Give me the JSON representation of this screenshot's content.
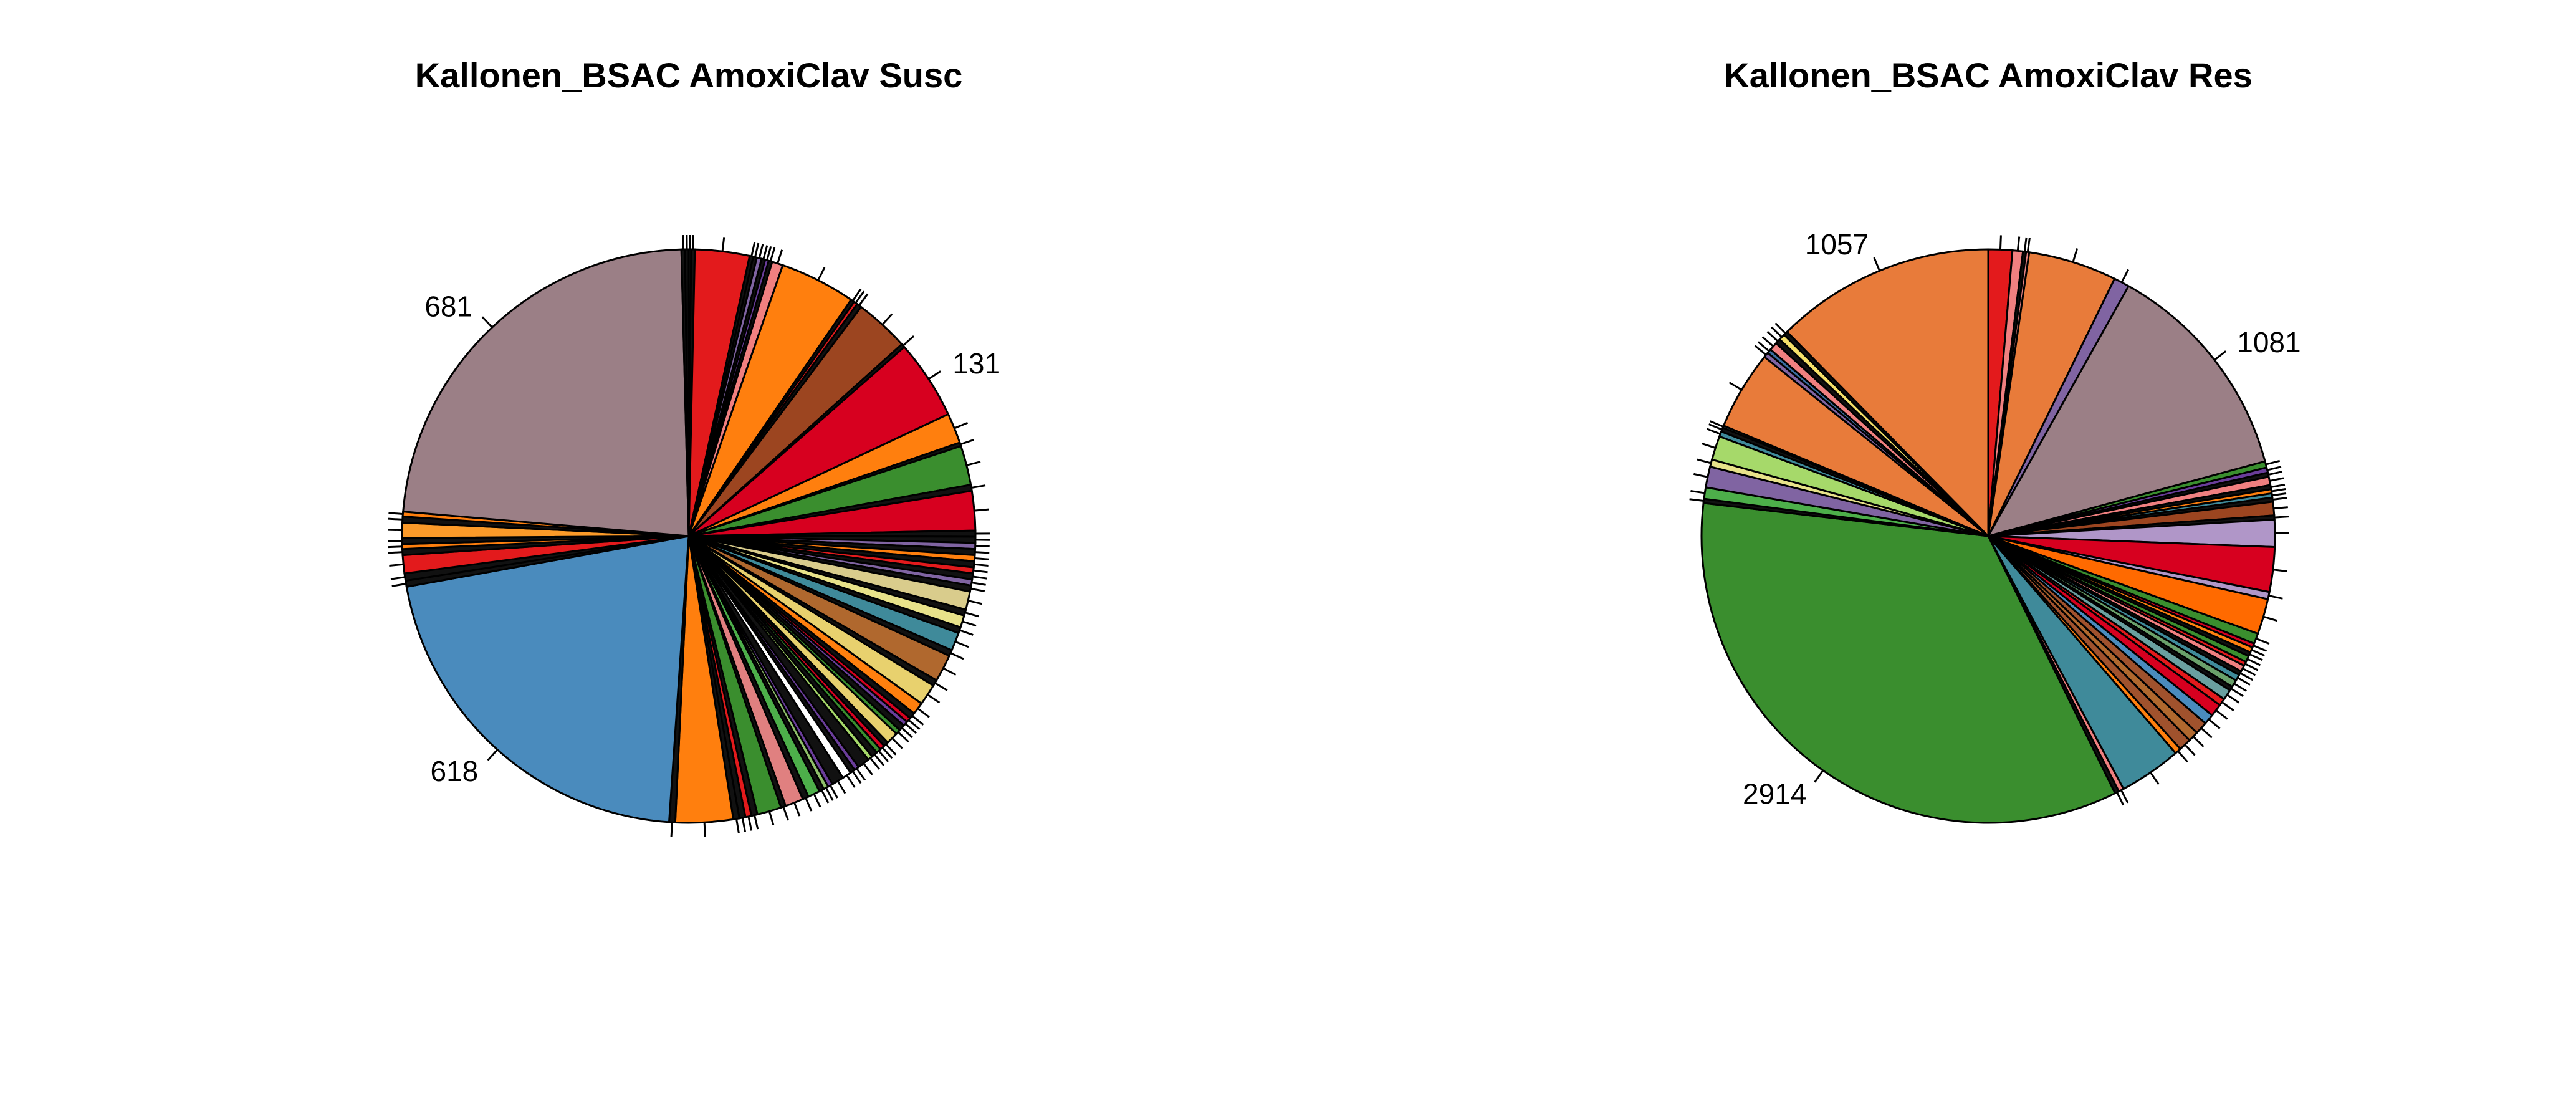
{
  "chart_data": [
    {
      "type": "pie",
      "title": "Kallonen_BSAC AmoxiClav Susc",
      "slices": [
        {
          "value": 4,
          "color": "#111111"
        },
        {
          "value": 6,
          "color": "#111111"
        },
        {
          "value": 90,
          "color": "#e31a1c"
        },
        {
          "value": 6,
          "color": "#111111"
        },
        {
          "value": 6,
          "color": "#111111"
        },
        {
          "value": 8,
          "color": "#8064a2"
        },
        {
          "value": 6,
          "color": "#111111"
        },
        {
          "value": 6,
          "color": "#6a3d9a"
        },
        {
          "value": 6,
          "color": "#111111"
        },
        {
          "value": 18,
          "color": "#f08080"
        },
        {
          "value": 125,
          "color": "#ff7f0e"
        },
        {
          "value": 6,
          "color": "#111111"
        },
        {
          "value": 6,
          "color": "#e31a1c"
        },
        {
          "value": 8,
          "color": "#111111"
        },
        {
          "value": 90,
          "color": "#9c4520"
        },
        {
          "value": 6,
          "color": "#111111"
        },
        {
          "value": 131,
          "color": "#d7001f",
          "label": "131"
        },
        {
          "value": 50,
          "color": "#ff7f0e"
        },
        {
          "value": 6,
          "color": "#111111"
        },
        {
          "value": 65,
          "color": "#3a8e2e"
        },
        {
          "value": 10,
          "color": "#111111"
        },
        {
          "value": 65,
          "color": "#d7001f"
        },
        {
          "value": 10,
          "color": "#111111"
        },
        {
          "value": 10,
          "color": "#111111"
        },
        {
          "value": 10,
          "color": "#8064a2"
        },
        {
          "value": 10,
          "color": "#111111"
        },
        {
          "value": 10,
          "color": "#ff7f0e"
        },
        {
          "value": 10,
          "color": "#111111"
        },
        {
          "value": 10,
          "color": "#e31a1c"
        },
        {
          "value": 10,
          "color": "#111111"
        },
        {
          "value": 10,
          "color": "#8064a2"
        },
        {
          "value": 10,
          "color": "#111111"
        },
        {
          "value": 30,
          "color": "#d9cc8c"
        },
        {
          "value": 10,
          "color": "#111111"
        },
        {
          "value": 20,
          "color": "#e8e28a"
        },
        {
          "value": 10,
          "color": "#111111"
        },
        {
          "value": 30,
          "color": "#3f8a9a"
        },
        {
          "value": 10,
          "color": "#111111"
        },
        {
          "value": 45,
          "color": "#b0682e"
        },
        {
          "value": 10,
          "color": "#111111"
        },
        {
          "value": 35,
          "color": "#e8d16e"
        },
        {
          "value": 20,
          "color": "#ff7f0e"
        },
        {
          "value": 10,
          "color": "#111111"
        },
        {
          "value": 8,
          "color": "#d7001f"
        },
        {
          "value": 8,
          "color": "#6a3d9a"
        },
        {
          "value": 10,
          "color": "#111111"
        },
        {
          "value": 8,
          "color": "#3a8e2e"
        },
        {
          "value": 20,
          "color": "#e8d16e"
        },
        {
          "value": 8,
          "color": "#111111"
        },
        {
          "value": 8,
          "color": "#d7001f"
        },
        {
          "value": 8,
          "color": "#3a8e2e"
        },
        {
          "value": 10,
          "color": "#111111"
        },
        {
          "value": 8,
          "color": "#a6d96a"
        },
        {
          "value": 20,
          "color": "#111111"
        },
        {
          "value": 8,
          "color": "#6a3d9a"
        },
        {
          "value": 8,
          "color": "#111111"
        },
        {
          "value": 15,
          "color": "#ffffff"
        },
        {
          "value": 20,
          "color": "#111111"
        },
        {
          "value": 8,
          "color": "#6a3d9a"
        },
        {
          "value": 8,
          "color": "#8fbf6a"
        },
        {
          "value": 8,
          "color": "#111111"
        },
        {
          "value": 20,
          "color": "#4daf4a"
        },
        {
          "value": 10,
          "color": "#111111"
        },
        {
          "value": 30,
          "color": "#e08080"
        },
        {
          "value": 8,
          "color": "#111111"
        },
        {
          "value": 40,
          "color": "#3a8e2e"
        },
        {
          "value": 10,
          "color": "#111111"
        },
        {
          "value": 10,
          "color": "#e31a1c"
        },
        {
          "value": 10,
          "color": "#111111"
        },
        {
          "value": 10,
          "color": "#111111"
        },
        {
          "value": 95,
          "color": "#ff7f0e"
        },
        {
          "value": 10,
          "color": "#111111"
        },
        {
          "value": 618,
          "color": "#4a8bbd",
          "label": "618"
        },
        {
          "value": 10,
          "color": "#111111"
        },
        {
          "value": 12,
          "color": "#111111"
        },
        {
          "value": 30,
          "color": "#e31a1c"
        },
        {
          "value": 10,
          "color": "#111111"
        },
        {
          "value": 8,
          "color": "#ff7f0e"
        },
        {
          "value": 10,
          "color": "#111111"
        },
        {
          "value": 25,
          "color": "#fb9a29"
        },
        {
          "value": 10,
          "color": "#111111"
        },
        {
          "value": 8,
          "color": "#ff7f0e"
        },
        {
          "value": 681,
          "color": "#9b7f86",
          "label": "681"
        },
        {
          "value": 6,
          "color": "#111111"
        },
        {
          "value": 6,
          "color": "#111111"
        }
      ]
    },
    {
      "type": "pie",
      "title": "Kallonen_BSAC AmoxiClav Res",
      "slices": [
        {
          "value": 115,
          "color": "#e31a1c"
        },
        {
          "value": 50,
          "color": "#f08080"
        },
        {
          "value": 15,
          "color": "#111111"
        },
        {
          "value": 15,
          "color": "#e38080"
        },
        {
          "value": 425,
          "color": "#e87b3a"
        },
        {
          "value": 75,
          "color": "#8064a2"
        },
        {
          "value": 1081,
          "color": "#9b7f86",
          "label": "1081"
        },
        {
          "value": 30,
          "color": "#3a8e2e"
        },
        {
          "value": 25,
          "color": "#6a3d9a"
        },
        {
          "value": 20,
          "color": "#111111"
        },
        {
          "value": 40,
          "color": "#f08080"
        },
        {
          "value": 20,
          "color": "#111111"
        },
        {
          "value": 20,
          "color": "#ff7f0e"
        },
        {
          "value": 20,
          "color": "#3f8a9a"
        },
        {
          "value": 20,
          "color": "#111111"
        },
        {
          "value": 65,
          "color": "#9c4520"
        },
        {
          "value": 20,
          "color": "#111111"
        },
        {
          "value": 130,
          "color": "#b096c8"
        },
        {
          "value": 215,
          "color": "#d7001f"
        },
        {
          "value": 35,
          "color": "#b096c8"
        },
        {
          "value": 170,
          "color": "#ff6a00"
        },
        {
          "value": 50,
          "color": "#3a8e2e"
        },
        {
          "value": 20,
          "color": "#d7001f"
        },
        {
          "value": 25,
          "color": "#ff7f0e"
        },
        {
          "value": 20,
          "color": "#111111"
        },
        {
          "value": 30,
          "color": "#3a8e2e"
        },
        {
          "value": 20,
          "color": "#e31a1c"
        },
        {
          "value": 30,
          "color": "#f08080"
        },
        {
          "value": 20,
          "color": "#111111"
        },
        {
          "value": 30,
          "color": "#3f8a9a"
        },
        {
          "value": 35,
          "color": "#6aa06a"
        },
        {
          "value": 20,
          "color": "#111111"
        },
        {
          "value": 50,
          "color": "#6aa0a0"
        },
        {
          "value": 35,
          "color": "#e31a1c"
        },
        {
          "value": 60,
          "color": "#d7001f"
        },
        {
          "value": 50,
          "color": "#4a8bbd"
        },
        {
          "value": 60,
          "color": "#a0522d"
        },
        {
          "value": 50,
          "color": "#b0682e"
        },
        {
          "value": 60,
          "color": "#a0522d"
        },
        {
          "value": 30,
          "color": "#ff7f0e"
        },
        {
          "value": 300,
          "color": "#3f8a9a"
        },
        {
          "value": 25,
          "color": "#f08080"
        },
        {
          "value": 20,
          "color": "#111111"
        },
        {
          "value": 2914,
          "color": "#3a8e2e",
          "label": "2914"
        },
        {
          "value": 20,
          "color": "#111111"
        },
        {
          "value": 55,
          "color": "#4daf4a"
        },
        {
          "value": 100,
          "color": "#8064a2"
        },
        {
          "value": 35,
          "color": "#e8e28a"
        },
        {
          "value": 115,
          "color": "#a6d96a"
        },
        {
          "value": 25,
          "color": "#3f8a9a"
        },
        {
          "value": 20,
          "color": "#111111"
        },
        {
          "value": 10,
          "color": "#6aa0a0"
        },
        {
          "value": 380,
          "color": "#e87b3a"
        },
        {
          "value": 25,
          "color": "#8064a2"
        },
        {
          "value": 20,
          "color": "#3a6ea0"
        },
        {
          "value": 40,
          "color": "#f08080"
        },
        {
          "value": 25,
          "color": "#111111"
        },
        {
          "value": 30,
          "color": "#f5e06a"
        },
        {
          "value": 20,
          "color": "#111111"
        },
        {
          "value": 1057,
          "color": "#e87b3a",
          "label": "1057"
        }
      ]
    }
  ]
}
